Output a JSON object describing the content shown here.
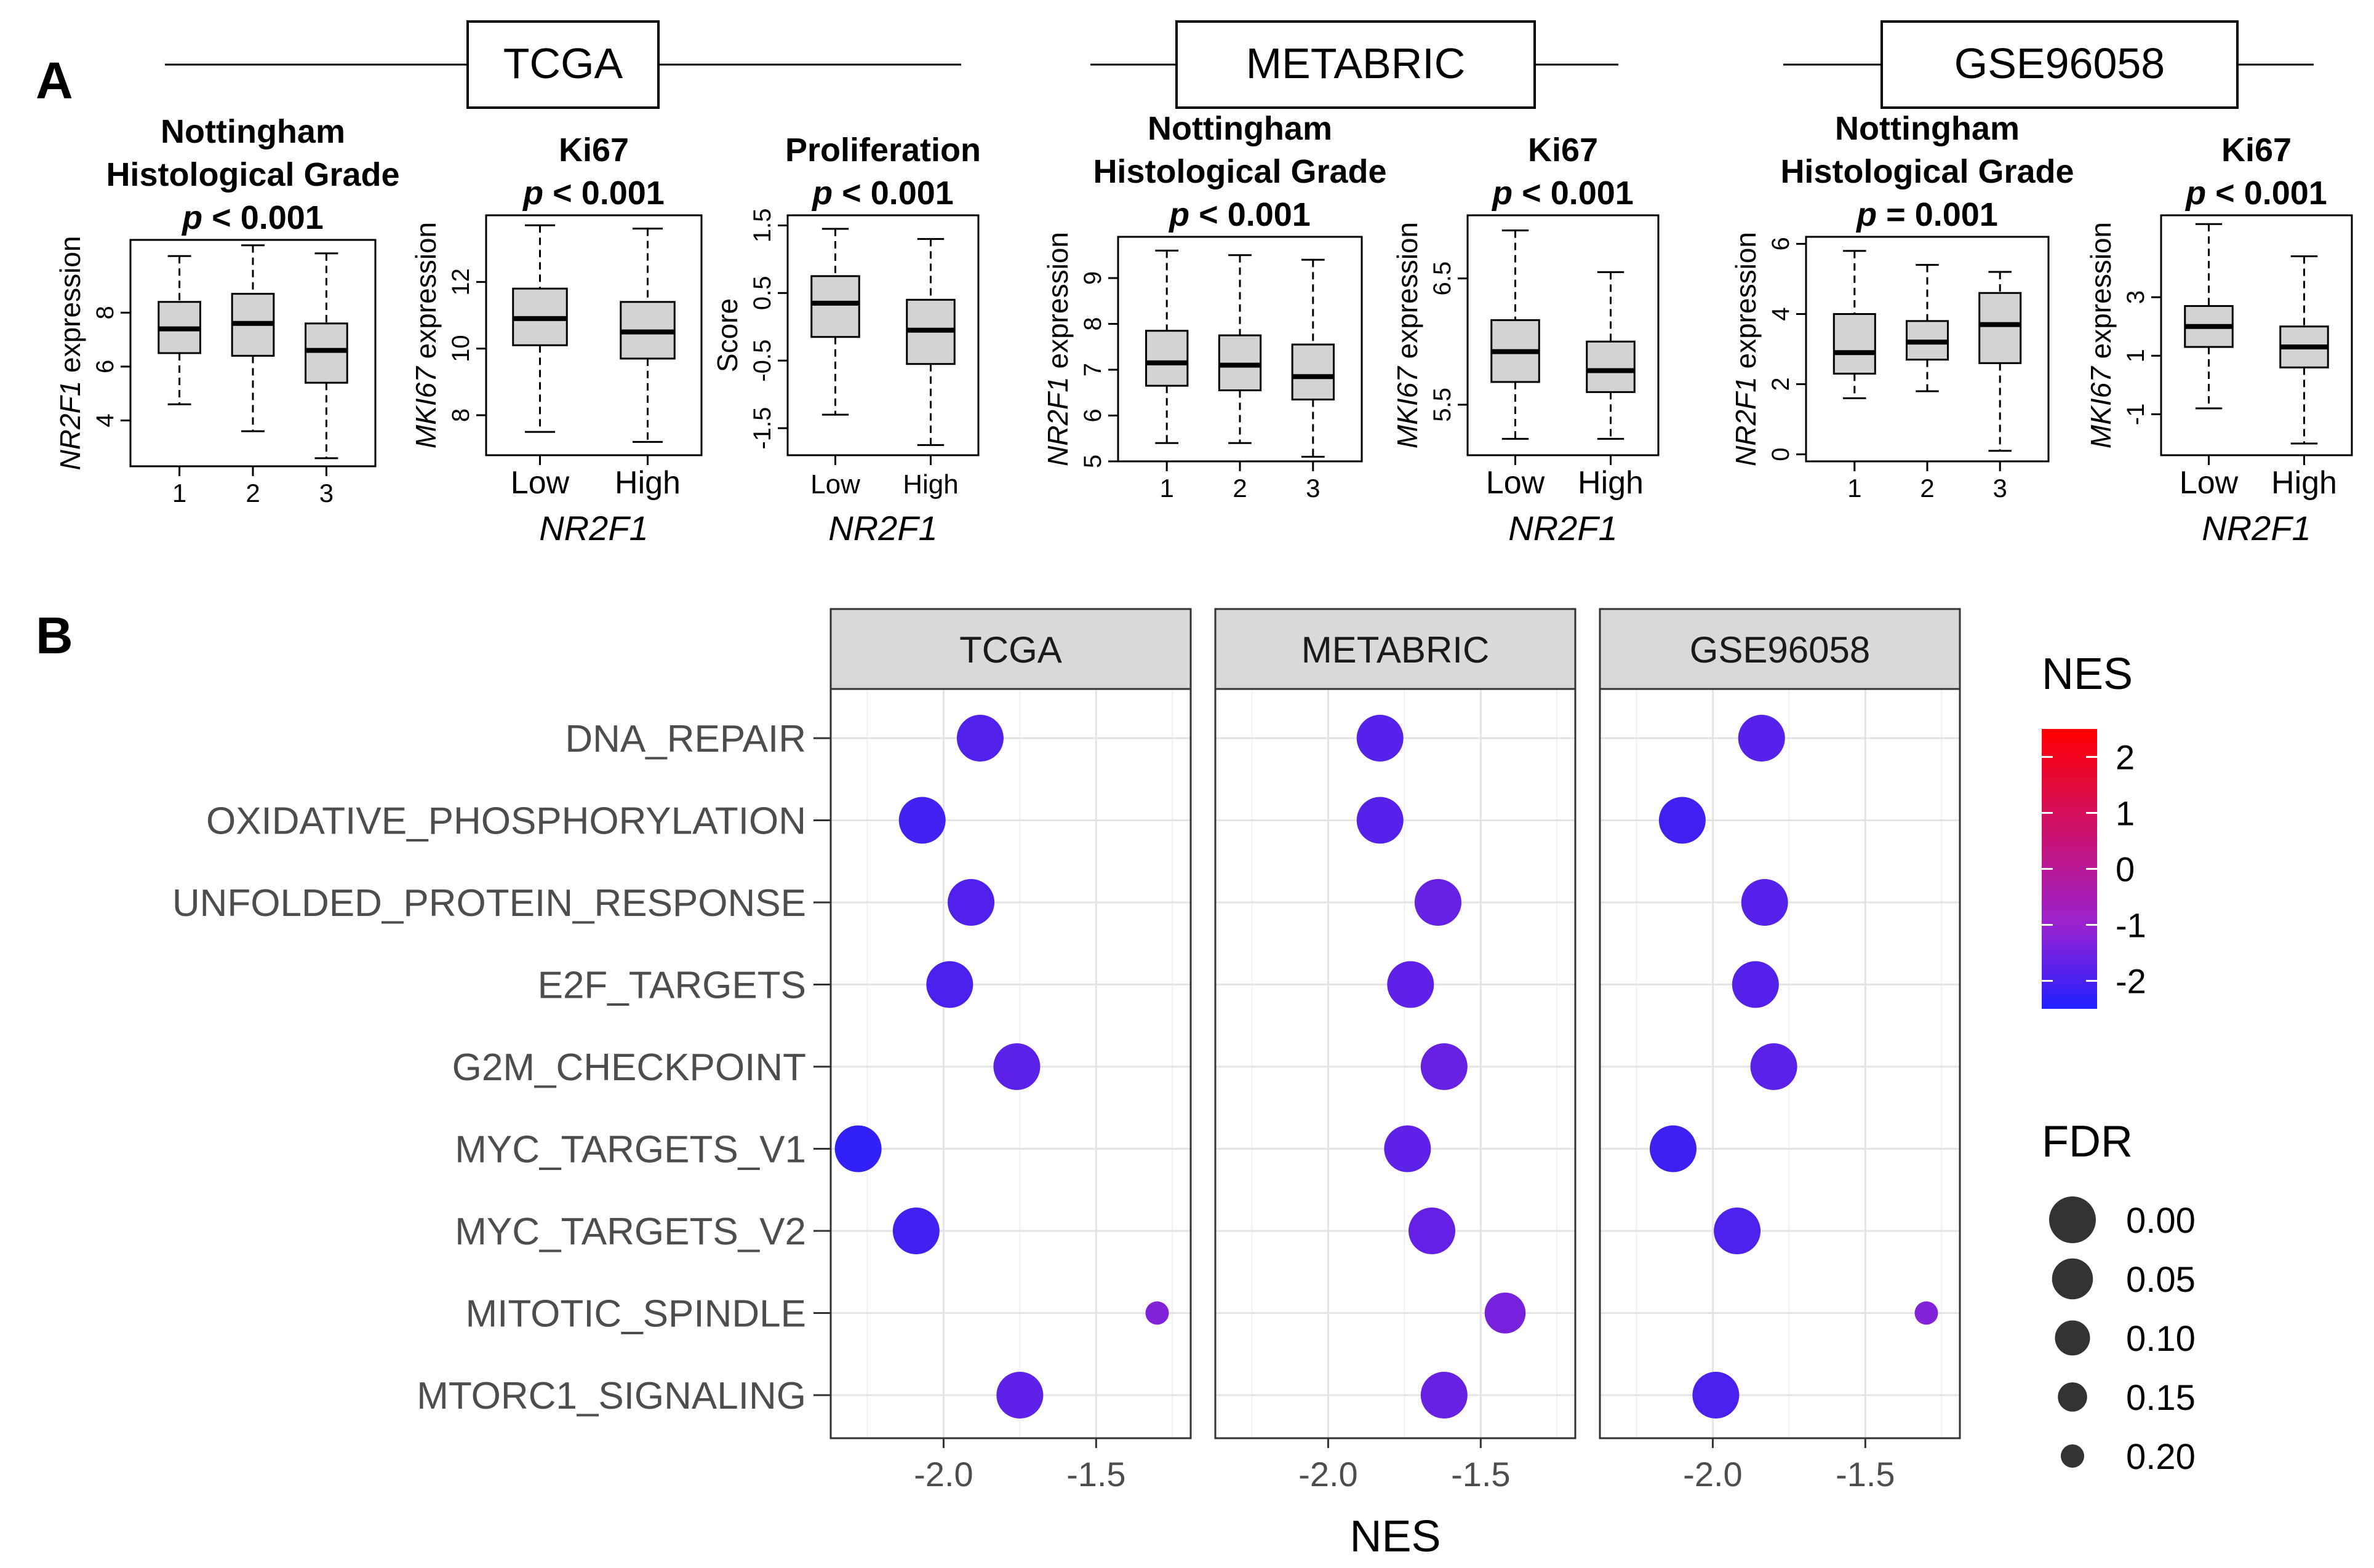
{
  "panel_labels": {
    "a": "A",
    "b": "B"
  },
  "cohorts": [
    {
      "name": "TCGA"
    },
    {
      "name": "METABRIC"
    },
    {
      "name": "GSE96058"
    }
  ],
  "chart_data": [
    {
      "type": "boxplot",
      "cohort": "TCGA",
      "title_lines": [
        "Nottingham",
        "Histological Grade"
      ],
      "p_label": "p",
      "p_value": "< 0.001",
      "ylabel_italic": "NR2F1",
      "ylabel_rest": "expression",
      "xlabel": "",
      "categories": [
        "1",
        "2",
        "3"
      ],
      "yticks": [
        4,
        6,
        8
      ],
      "ylim": [
        2.3,
        10.7
      ],
      "boxes": [
        {
          "min": 4.6,
          "q1": 6.5,
          "median": 7.4,
          "q3": 8.4,
          "max": 10.1
        },
        {
          "min": 3.6,
          "q1": 6.4,
          "median": 7.6,
          "q3": 8.7,
          "max": 10.5
        },
        {
          "min": 2.6,
          "q1": 5.4,
          "median": 6.6,
          "q3": 7.6,
          "max": 10.2
        }
      ]
    },
    {
      "type": "boxplot",
      "cohort": "TCGA",
      "title_lines": [
        "Ki67"
      ],
      "p_label": "p",
      "p_value": "< 0.001",
      "ylabel_italic": "MKI67",
      "ylabel_rest": "expression",
      "xlabel": "NR2F1",
      "categories": [
        "Low",
        "High"
      ],
      "yticks": [
        8,
        10,
        12
      ],
      "ylim": [
        6.8,
        14.0
      ],
      "boxes": [
        {
          "min": 7.5,
          "q1": 10.1,
          "median": 10.9,
          "q3": 11.8,
          "max": 13.7
        },
        {
          "min": 7.2,
          "q1": 9.7,
          "median": 10.5,
          "q3": 11.4,
          "max": 13.6
        }
      ]
    },
    {
      "type": "boxplot",
      "cohort": "TCGA",
      "title_lines": [
        "Proliferation"
      ],
      "p_label": "p",
      "p_value": "< 0.001",
      "ylabel_italic": "",
      "ylabel_rest": "Score",
      "xlabel": "NR2F1",
      "categories": [
        "Low",
        "High"
      ],
      "yticks": [
        -1.5,
        -0.5,
        0.5,
        1.5
      ],
      "ylim": [
        -1.9,
        1.65
      ],
      "boxes": [
        {
          "min": -1.3,
          "q1": -0.15,
          "median": 0.35,
          "q3": 0.75,
          "max": 1.45
        },
        {
          "min": -1.75,
          "q1": -0.55,
          "median": -0.05,
          "q3": 0.4,
          "max": 1.3
        }
      ]
    },
    {
      "type": "boxplot",
      "cohort": "METABRIC",
      "title_lines": [
        "Nottingham",
        "Histological Grade"
      ],
      "p_label": "p",
      "p_value": "< 0.001",
      "ylabel_italic": "NR2F1",
      "ylabel_rest": "expression",
      "xlabel": "",
      "categories": [
        "1",
        "2",
        "3"
      ],
      "yticks": [
        5,
        6,
        7,
        8,
        9
      ],
      "ylim": [
        5.0,
        9.9
      ],
      "boxes": [
        {
          "min": 5.4,
          "q1": 6.65,
          "median": 7.15,
          "q3": 7.85,
          "max": 9.6
        },
        {
          "min": 5.4,
          "q1": 6.55,
          "median": 7.1,
          "q3": 7.75,
          "max": 9.5
        },
        {
          "min": 5.1,
          "q1": 6.35,
          "median": 6.85,
          "q3": 7.55,
          "max": 9.4
        }
      ]
    },
    {
      "type": "boxplot",
      "cohort": "METABRIC",
      "title_lines": [
        "Ki67"
      ],
      "p_label": "p",
      "p_value": "< 0.001",
      "ylabel_italic": "MKI67",
      "ylabel_rest": "expression",
      "xlabel": "NR2F1",
      "categories": [
        "Low",
        "High"
      ],
      "yticks": [
        5.5,
        6.5
      ],
      "ylim": [
        5.1,
        7.0
      ],
      "boxes": [
        {
          "min": 5.23,
          "q1": 5.68,
          "median": 5.92,
          "q3": 6.17,
          "max": 6.88
        },
        {
          "min": 5.23,
          "q1": 5.6,
          "median": 5.77,
          "q3": 6.0,
          "max": 6.55
        }
      ]
    },
    {
      "type": "boxplot",
      "cohort": "GSE96058",
      "title_lines": [
        "Nottingham",
        "Histological Grade"
      ],
      "p_label": "p",
      "p_value": "= 0.001",
      "ylabel_italic": "NR2F1",
      "ylabel_rest": "expression",
      "xlabel": "",
      "categories": [
        "1",
        "2",
        "3"
      ],
      "yticks": [
        0,
        2,
        4,
        6
      ],
      "ylim": [
        -0.2,
        6.2
      ],
      "boxes": [
        {
          "min": 1.6,
          "q1": 2.3,
          "median": 2.9,
          "q3": 4.0,
          "max": 5.8
        },
        {
          "min": 1.8,
          "q1": 2.7,
          "median": 3.2,
          "q3": 3.8,
          "max": 5.4
        },
        {
          "min": 0.1,
          "q1": 2.6,
          "median": 3.7,
          "q3": 4.6,
          "max": 5.2
        }
      ]
    },
    {
      "type": "boxplot",
      "cohort": "GSE96058",
      "title_lines": [
        "Ki67"
      ],
      "p_label": "p",
      "p_value": "< 0.001",
      "ylabel_italic": "MKI67",
      "ylabel_rest": "expression",
      "xlabel": "NR2F1",
      "categories": [
        "Low",
        "High"
      ],
      "yticks": [
        -1,
        1,
        3
      ],
      "ylim": [
        -2.4,
        5.8
      ],
      "boxes": [
        {
          "min": -0.8,
          "q1": 1.3,
          "median": 2.0,
          "q3": 2.7,
          "max": 5.5
        },
        {
          "min": -2.0,
          "q1": 0.6,
          "median": 1.3,
          "q3": 2.0,
          "max": 4.4
        }
      ]
    },
    {
      "type": "dotplot",
      "xlabel": "NES",
      "xticks": [
        -2.0,
        -1.5
      ],
      "xlim": [
        -2.37,
        -1.19
      ],
      "facets": [
        "TCGA",
        "METABRIC",
        "GSE96058"
      ],
      "pathways": [
        "DNA_REPAIR",
        "OXIDATIVE_PHOSPHORYLATION",
        "UNFOLDED_PROTEIN_RESPONSE",
        "E2F_TARGETS",
        "G2M_CHECKPOINT",
        "MYC_TARGETS_V1",
        "MYC_TARGETS_V2",
        "MITOTIC_SPINDLE",
        "MTORC1_SIGNALING"
      ],
      "nes": {
        "TCGA": [
          -1.88,
          -2.07,
          -1.91,
          -1.98,
          -1.76,
          -2.28,
          -2.09,
          -1.3,
          -1.75
        ],
        "METABRIC": [
          -1.83,
          -1.83,
          -1.64,
          -1.73,
          -1.62,
          -1.74,
          -1.66,
          -1.42,
          -1.62
        ],
        "GSE96058": [
          -1.84,
          -2.1,
          -1.83,
          -1.86,
          -1.8,
          -2.13,
          -1.92,
          -1.3,
          -1.99
        ]
      },
      "fdr": {
        "TCGA": [
          0.0,
          0.0,
          0.0,
          0.0,
          0.0,
          0.0,
          0.0,
          0.2,
          0.0
        ],
        "METABRIC": [
          0.0,
          0.0,
          0.0,
          0.0,
          0.0,
          0.0,
          0.0,
          0.05,
          0.0
        ],
        "GSE96058": [
          0.0,
          0.0,
          0.0,
          0.0,
          0.0,
          0.0,
          0.0,
          0.2,
          0.0
        ]
      },
      "legend_color": {
        "title": "NES",
        "ticks": [
          2,
          1,
          0,
          -1,
          -2
        ],
        "range": [
          -2.5,
          2.5
        ],
        "low_color": "#2020ff",
        "mid_color": "#9a22d0",
        "high_color": "#ff0000"
      },
      "legend_size": {
        "title": "FDR",
        "ticks": [
          "0.00",
          "0.05",
          "0.10",
          "0.15",
          "0.20"
        ]
      }
    }
  ]
}
